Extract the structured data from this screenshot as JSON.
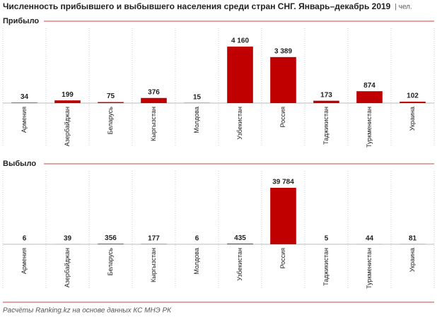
{
  "title": "Численность прибывшего и выбывшего населения среди стран СНГ. Январь–декабрь 2019",
  "unit": "| чел.",
  "source": "Расчёты Ranking.kz на основе данных КС МНЭ РК",
  "chart_data": [
    {
      "type": "bar",
      "title": "Прибыло",
      "categories": [
        "Армения",
        "Азербайджан",
        "Беларусь",
        "Кыргызстан",
        "Молдова",
        "Узбекистан",
        "Россия",
        "Таджикистан",
        "Туркменистан",
        "Украина"
      ],
      "values": [
        34,
        199,
        75,
        376,
        15,
        4160,
        3389,
        173,
        874,
        102
      ],
      "value_labels": [
        "34",
        "199",
        "75",
        "376",
        "15",
        "4 160",
        "3 389",
        "173",
        "874",
        "102"
      ],
      "color": "#c00000"
    },
    {
      "type": "bar",
      "title": "Выбыло",
      "categories": [
        "Армения",
        "Азербайджан",
        "Беларусь",
        "Кыргызстан",
        "Молдова",
        "Узбекистан",
        "Россия",
        "Таджикистан",
        "Туркменистан",
        "Украина"
      ],
      "values": [
        6,
        39,
        356,
        177,
        6,
        435,
        39784,
        5,
        44,
        81
      ],
      "value_labels": [
        "6",
        "39",
        "356",
        "177",
        "6",
        "435",
        "39 784",
        "5",
        "44",
        "81"
      ],
      "color": "#c00000"
    }
  ]
}
